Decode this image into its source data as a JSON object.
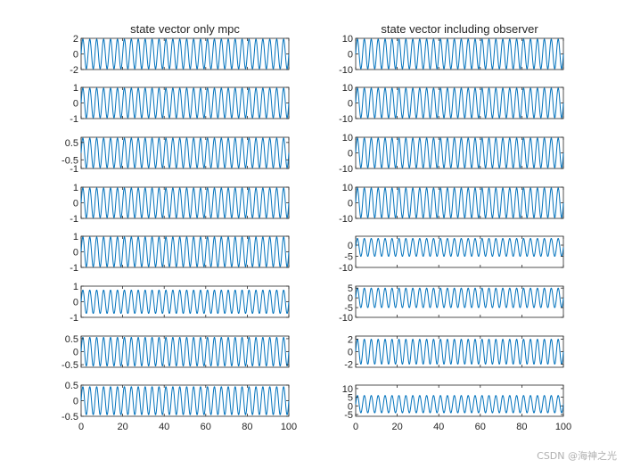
{
  "figure": {
    "columns": [
      {
        "title": "state vector only mpc",
        "subplots": [
          {
            "ylim": [
              -2,
              2
            ],
            "yticks": [
              2,
              0,
              -2
            ],
            "ytick_labels": [
              "2",
              "0",
              "-2"
            ],
            "amplitude": 1.9,
            "offset": 0
          },
          {
            "ylim": [
              -1,
              1
            ],
            "yticks": [
              1,
              0,
              -1
            ],
            "ytick_labels": [
              "1",
              "0",
              "-1"
            ],
            "amplitude": 0.95,
            "offset": 0
          },
          {
            "ylim": [
              -1,
              0.8
            ],
            "yticks": [
              0.5,
              -0.5,
              -1
            ],
            "ytick_labels": [
              "0.5",
              "-0.5",
              "-1"
            ],
            "amplitude": 0.85,
            "offset": -0.1
          },
          {
            "ylim": [
              -1,
              1
            ],
            "yticks": [
              1,
              0,
              -1
            ],
            "ytick_labels": [
              "1",
              "0",
              "-1"
            ],
            "amplitude": 0.95,
            "offset": 0
          },
          {
            "ylim": [
              -1,
              1
            ],
            "yticks": [
              1,
              0,
              -1
            ],
            "ytick_labels": [
              "1",
              "0",
              "-1"
            ],
            "amplitude": 0.95,
            "offset": 0
          },
          {
            "ylim": [
              -1,
              1
            ],
            "yticks": [
              1,
              0,
              -1
            ],
            "ytick_labels": [
              "1",
              "0",
              "-1"
            ],
            "amplitude": 0.75,
            "offset": 0
          },
          {
            "ylim": [
              -0.6,
              0.6
            ],
            "yticks": [
              0.5,
              0,
              -0.5
            ],
            "ytick_labels": [
              "0.5",
              "0",
              "-0.5"
            ],
            "amplitude": 0.55,
            "offset": 0
          },
          {
            "ylim": [
              -0.5,
              0.5
            ],
            "yticks": [
              0.5,
              0,
              -0.5
            ],
            "ytick_labels": [
              "0.5",
              "0",
              "-0.5"
            ],
            "amplitude": 0.45,
            "offset": 0
          }
        ]
      },
      {
        "title": "state vector including observer",
        "subplots": [
          {
            "ylim": [
              -10,
              10
            ],
            "yticks": [
              10,
              0,
              -10
            ],
            "ytick_labels": [
              "10",
              "0",
              "-10"
            ],
            "amplitude": 9.5,
            "offset": 0
          },
          {
            "ylim": [
              -10,
              10
            ],
            "yticks": [
              10,
              0,
              -10
            ],
            "ytick_labels": [
              "10",
              "0",
              "-10"
            ],
            "amplitude": 9.5,
            "offset": 0
          },
          {
            "ylim": [
              -10,
              10
            ],
            "yticks": [
              10,
              0,
              -10
            ],
            "ytick_labels": [
              "10",
              "0",
              "-10"
            ],
            "amplitude": 9.5,
            "offset": 0
          },
          {
            "ylim": [
              -10,
              10
            ],
            "yticks": [
              10,
              0,
              -10
            ],
            "ytick_labels": [
              "10",
              "0",
              "-10"
            ],
            "amplitude": 9.5,
            "offset": 0
          },
          {
            "ylim": [
              -10,
              4
            ],
            "yticks": [
              0,
              -5,
              -10
            ],
            "ytick_labels": [
              "0",
              "-5",
              "-10"
            ],
            "amplitude": 4,
            "offset": -1
          },
          {
            "ylim": [
              -10,
              6
            ],
            "yticks": [
              5,
              0,
              -5,
              -10
            ],
            "ytick_labels": [
              "5",
              "0",
              "-5",
              "-10"
            ],
            "amplitude": 5,
            "offset": 0
          },
          {
            "ylim": [
              -2.5,
              2.5
            ],
            "yticks": [
              2,
              0,
              -2
            ],
            "ytick_labels": [
              "2",
              "0",
              "-2"
            ],
            "amplitude": 2,
            "offset": 0
          },
          {
            "ylim": [
              -6,
              12
            ],
            "yticks": [
              10,
              5,
              0,
              -5
            ],
            "ytick_labels": [
              "10",
              "5",
              "0",
              "-5"
            ],
            "amplitude": 5,
            "offset": 1
          }
        ]
      }
    ],
    "xaxis": {
      "xlim": [
        0,
        100
      ],
      "xticks": [
        0,
        20,
        40,
        60,
        80,
        100
      ],
      "xtick_labels": [
        "0",
        "20",
        "40",
        "60",
        "80",
        "100"
      ]
    },
    "line_color": "#0072BD",
    "watermark": "CSDN @海神之光"
  },
  "chart_data": {
    "type": "line",
    "layout": "8 rows x 2 columns of subplots",
    "titles": [
      "state vector only mpc",
      "state vector including observer"
    ],
    "xlabel": "",
    "ylabel": "",
    "xlim": [
      0,
      100
    ],
    "signal": "sinusoidal oscillation, about 30 cycles over x = 0..100",
    "cycles": 30,
    "series": [
      {
        "column": 1,
        "row": 1,
        "ylim": [
          -2,
          2
        ],
        "approx_range": [
          -1.9,
          1.9
        ]
      },
      {
        "column": 1,
        "row": 2,
        "ylim": [
          -1,
          1
        ],
        "approx_range": [
          -0.95,
          0.95
        ]
      },
      {
        "column": 1,
        "row": 3,
        "ylim": [
          -1,
          0.8
        ],
        "approx_range": [
          -0.95,
          0.75
        ]
      },
      {
        "column": 1,
        "row": 4,
        "ylim": [
          -1,
          1
        ],
        "approx_range": [
          -0.95,
          0.95
        ]
      },
      {
        "column": 1,
        "row": 5,
        "ylim": [
          -1,
          1
        ],
        "approx_range": [
          -0.95,
          0.95
        ]
      },
      {
        "column": 1,
        "row": 6,
        "ylim": [
          -1,
          1
        ],
        "approx_range": [
          -0.75,
          0.75
        ]
      },
      {
        "column": 1,
        "row": 7,
        "ylim": [
          -0.6,
          0.6
        ],
        "approx_range": [
          -0.55,
          0.55
        ]
      },
      {
        "column": 1,
        "row": 8,
        "ylim": [
          -0.5,
          0.5
        ],
        "approx_range": [
          -0.45,
          0.45
        ]
      },
      {
        "column": 2,
        "row": 1,
        "ylim": [
          -10,
          10
        ],
        "approx_range": [
          -9.5,
          9.5
        ]
      },
      {
        "column": 2,
        "row": 2,
        "ylim": [
          -10,
          10
        ],
        "approx_range": [
          -9.5,
          9.5
        ]
      },
      {
        "column": 2,
        "row": 3,
        "ylim": [
          -10,
          10
        ],
        "approx_range": [
          -9.5,
          9.5
        ]
      },
      {
        "column": 2,
        "row": 4,
        "ylim": [
          -10,
          10
        ],
        "approx_range": [
          -9.5,
          9.5
        ]
      },
      {
        "column": 2,
        "row": 5,
        "ylim": [
          -10,
          4
        ],
        "approx_range": [
          -5,
          3
        ]
      },
      {
        "column": 2,
        "row": 6,
        "ylim": [
          -10,
          6
        ],
        "approx_range": [
          -5,
          5
        ]
      },
      {
        "column": 2,
        "row": 7,
        "ylim": [
          -2.5,
          2.5
        ],
        "approx_range": [
          -2,
          2
        ]
      },
      {
        "column": 2,
        "row": 8,
        "ylim": [
          -6,
          12
        ],
        "approx_range": [
          -4,
          6
        ]
      }
    ]
  }
}
